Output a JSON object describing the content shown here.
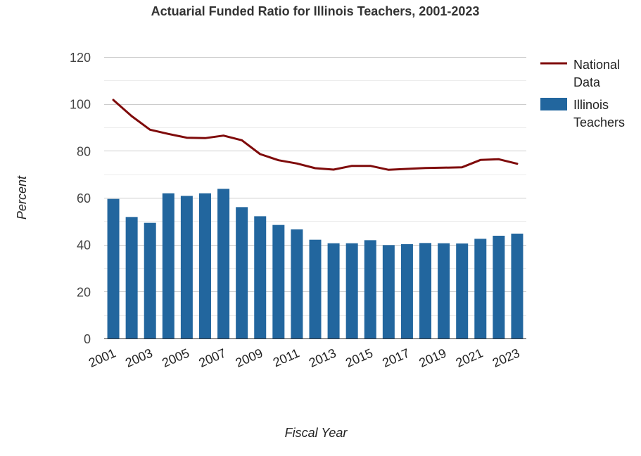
{
  "chart_data": {
    "type": "bar",
    "title": "Actuarial Funded Ratio for Illinois Teachers, 2001-2023",
    "xlabel": "Fiscal Year",
    "ylabel": "Percent",
    "ylim": [
      0,
      120
    ],
    "yticks": [
      "0",
      "20",
      "40",
      "60",
      "80",
      "100",
      "120"
    ],
    "grid": true,
    "legend_position": "right",
    "categories": [
      "2001",
      "2002",
      "2003",
      "2004",
      "2005",
      "2006",
      "2007",
      "2008",
      "2009",
      "2010",
      "2011",
      "2012",
      "2013",
      "2014",
      "2015",
      "2016",
      "2017",
      "2018",
      "2019",
      "2020",
      "2021",
      "2022",
      "2023"
    ],
    "x_tick_labels": [
      "2001",
      "2003",
      "2005",
      "2007",
      "2009",
      "2011",
      "2013",
      "2015",
      "2017",
      "2019",
      "2021",
      "2023"
    ],
    "series": [
      {
        "name": "Illinois Teachers",
        "type": "bar",
        "color": "#22669e",
        "legend_lines": [
          "Illinois",
          "Teachers"
        ],
        "values": [
          59.5,
          51.8,
          49.3,
          61.9,
          60.8,
          61.9,
          63.8,
          56.0,
          52.1,
          48.4,
          46.5,
          42.1,
          40.6,
          40.6,
          41.9,
          39.8,
          40.2,
          40.7,
          40.6,
          40.5,
          42.5,
          43.8,
          44.7
        ]
      },
      {
        "name": "National Data",
        "type": "line",
        "color": "#7f0b0b",
        "legend_lines": [
          "National",
          "Data"
        ],
        "values": [
          101.7,
          94.8,
          89.0,
          87.2,
          85.6,
          85.4,
          86.5,
          84.5,
          78.6,
          76.0,
          74.6,
          72.6,
          72.0,
          73.6,
          73.6,
          71.9,
          72.3,
          72.7,
          72.8,
          73.0,
          76.1,
          76.4,
          74.5
        ]
      }
    ]
  }
}
